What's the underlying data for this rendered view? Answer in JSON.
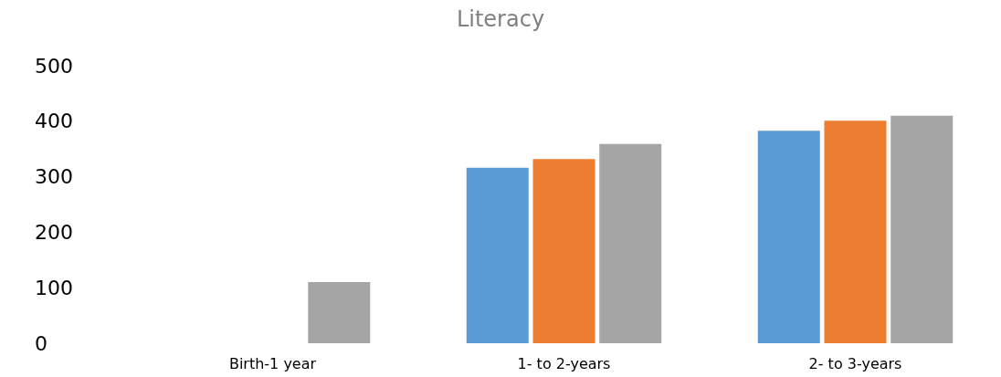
{
  "chart_data": {
    "type": "bar",
    "title": "Literacy",
    "categories": [
      "Birth-1 year",
      "1- to 2-years",
      "2- to 3-years"
    ],
    "series": [
      {
        "color": "#5b9bd5",
        "values": [
          null,
          316,
          383
        ]
      },
      {
        "color": "#ed7d31",
        "values": [
          null,
          332,
          401
        ]
      },
      {
        "color": "#a5a5a5",
        "values": [
          110,
          359,
          410
        ]
      }
    ],
    "ylim": [
      0,
      500
    ],
    "yticks": [
      0,
      100,
      200,
      300,
      400,
      500
    ],
    "grid": false
  }
}
